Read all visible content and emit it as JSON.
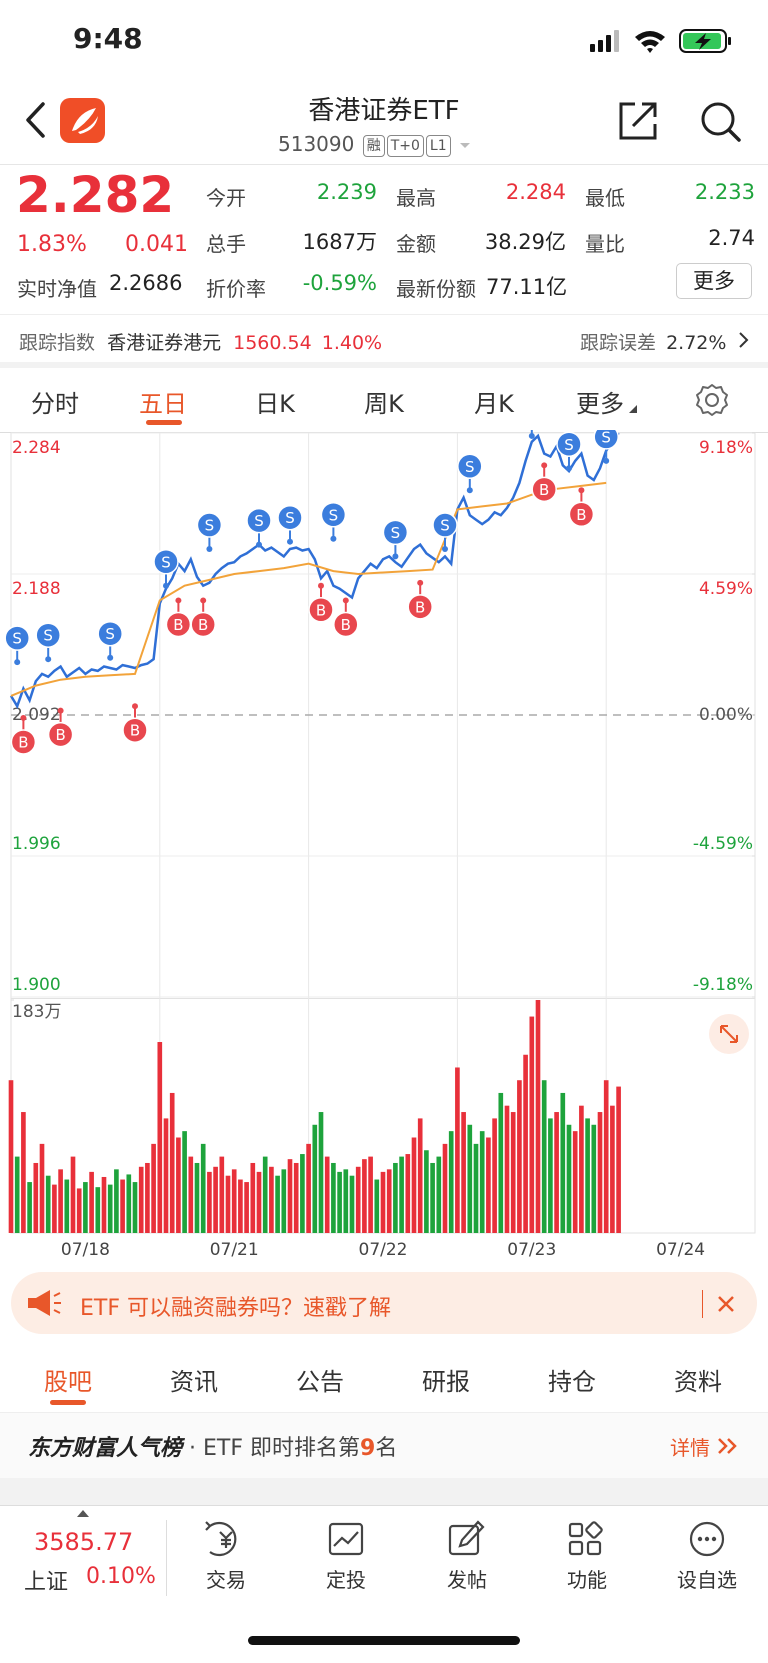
{
  "status_bar": {
    "time": "9:48"
  },
  "header": {
    "title": "香港证券ETF",
    "code": "513090",
    "tags": [
      "融",
      "T+0",
      "L1"
    ]
  },
  "quote": {
    "price": "2.282",
    "change_pct": "1.83%",
    "change": "0.041",
    "fields": [
      {
        "label": "今开",
        "value": "2.239"
      },
      {
        "label": "最高",
        "value": "2.284"
      },
      {
        "label": "最低",
        "value": "2.233"
      },
      {
        "label": "总手",
        "value": "1687万"
      },
      {
        "label": "金额",
        "value": "38.29亿"
      },
      {
        "label": "量比",
        "value": "2.74"
      },
      {
        "label": "实时净值",
        "value": "2.2686"
      },
      {
        "label": "折价率",
        "value": "-0.59%"
      },
      {
        "label": "最新份额",
        "value": "77.11亿"
      }
    ],
    "more": "更多"
  },
  "tracking": {
    "label": "跟踪指数",
    "index": "香港证券港元",
    "value": "1560.54",
    "pct": "1.40%",
    "error_label": "跟踪误差",
    "error": "2.72%"
  },
  "chart_tabs": [
    "分时",
    "五日",
    "日K",
    "周K",
    "月K",
    "更多"
  ],
  "chart_data": {
    "type": "line",
    "ylim": [
      1.9,
      2.284
    ],
    "yticks": [
      2.284,
      2.188,
      2.092,
      1.996,
      {
        "value": 1.9,
        "label": "1.900"
      }
    ],
    "y2lim": [
      -9.18,
      9.18
    ],
    "y2ticks": [
      {
        "value": 9.18,
        "label": "9.18%"
      },
      {
        "value": 4.59,
        "label": "4.59%"
      },
      {
        "value": 0,
        "label": "0.00%"
      },
      {
        "value": -4.59,
        "label": "-4.59%"
      },
      {
        "value": -9.18,
        "label": "-9.18%"
      }
    ],
    "xlim": [
      0,
      120
    ],
    "dates": [
      "07/18",
      "07/21",
      "07/22",
      "07/23",
      "07/24"
    ],
    "series": [
      {
        "color": "#2f6fd6",
        "x": [
          0,
          1,
          2,
          3,
          4,
          5,
          6,
          7,
          8,
          9,
          10,
          11,
          12,
          13,
          14,
          15,
          16,
          17,
          18,
          19,
          20,
          21,
          22,
          23,
          24,
          25,
          26,
          27,
          28,
          29,
          30,
          31,
          32,
          33,
          34,
          35,
          36,
          37,
          38,
          39,
          40,
          41,
          42,
          43,
          44,
          45,
          46,
          47,
          48,
          49,
          50,
          51,
          52,
          53,
          54,
          55,
          56,
          57,
          58,
          59,
          60,
          61,
          62,
          63,
          64,
          65,
          66,
          67,
          68,
          69,
          70,
          71,
          72,
          73,
          74,
          75,
          76,
          77,
          78,
          79,
          80,
          81,
          82,
          83,
          84,
          85,
          86,
          87,
          88,
          89,
          90,
          91,
          92,
          93,
          94,
          95,
          96,
          97,
          98
        ],
        "values": [
          2.105,
          2.098,
          2.11,
          2.102,
          2.115,
          2.12,
          2.118,
          2.122,
          2.125,
          2.118,
          2.121,
          2.124,
          2.12,
          2.123,
          2.122,
          2.125,
          2.124,
          2.123,
          2.126,
          2.125,
          2.124,
          2.126,
          2.127,
          2.13,
          2.168,
          2.178,
          2.185,
          2.195,
          2.19,
          2.198,
          2.186,
          2.18,
          2.182,
          2.188,
          2.192,
          2.195,
          2.196,
          2.2,
          2.202,
          2.205,
          2.208,
          2.204,
          2.206,
          2.203,
          2.2,
          2.205,
          2.206,
          2.204,
          2.205,
          2.198,
          2.185,
          2.19,
          2.18,
          2.178,
          2.175,
          2.172,
          2.185,
          2.19,
          2.195,
          2.192,
          2.198,
          2.2,
          2.196,
          2.193,
          2.199,
          2.205,
          2.208,
          2.202,
          2.199,
          2.196,
          2.2,
          2.195,
          2.232,
          2.24,
          2.228,
          2.225,
          2.222,
          2.225,
          2.23,
          2.228,
          2.233,
          2.24,
          2.25,
          2.265,
          2.278,
          2.282,
          2.27,
          2.268,
          2.275,
          2.262,
          2.258,
          2.265,
          2.27,
          2.255,
          2.252,
          2.26,
          2.272,
          2.278,
          2.284
        ]
      },
      {
        "color": "#f2a33a",
        "x": [
          0,
          4,
          8,
          12,
          16,
          20,
          24,
          28,
          32,
          36,
          40,
          44,
          48,
          52,
          56,
          60,
          64,
          68,
          72,
          76,
          80,
          84,
          88,
          92,
          96
        ],
        "values": [
          2.105,
          2.112,
          2.116,
          2.118,
          2.119,
          2.12,
          2.17,
          2.18,
          2.184,
          2.188,
          2.19,
          2.192,
          2.195,
          2.19,
          2.188,
          2.189,
          2.19,
          2.191,
          2.232,
          2.234,
          2.236,
          2.242,
          2.246,
          2.248,
          2.25
        ]
      }
    ],
    "markers": [
      {
        "label": "S",
        "x": 1,
        "value": 2.128
      },
      {
        "label": "B",
        "x": 2,
        "value": 2.09
      },
      {
        "label": "S",
        "x": 6,
        "value": 2.13
      },
      {
        "label": "B",
        "x": 8,
        "value": 2.095
      },
      {
        "label": "S",
        "x": 16,
        "value": 2.131
      },
      {
        "label": "B",
        "x": 20,
        "value": 2.098
      },
      {
        "label": "S",
        "x": 25,
        "value": 2.18
      },
      {
        "label": "B",
        "x": 27,
        "value": 2.17
      },
      {
        "label": "S",
        "x": 32,
        "value": 2.205
      },
      {
        "label": "B",
        "x": 31,
        "value": 2.17
      },
      {
        "label": "S",
        "x": 40,
        "value": 2.208
      },
      {
        "label": "S",
        "x": 45,
        "value": 2.21
      },
      {
        "label": "B",
        "x": 50,
        "value": 2.18
      },
      {
        "label": "S",
        "x": 52,
        "value": 2.212
      },
      {
        "label": "B",
        "x": 54,
        "value": 2.17
      },
      {
        "label": "S",
        "x": 62,
        "value": 2.2
      },
      {
        "label": "B",
        "x": 66,
        "value": 2.182
      },
      {
        "label": "S",
        "x": 70,
        "value": 2.205
      },
      {
        "label": "S",
        "x": 74,
        "value": 2.245
      },
      {
        "label": "S",
        "x": 84,
        "value": 2.282
      },
      {
        "label": "B",
        "x": 86,
        "value": 2.262
      },
      {
        "label": "S",
        "x": 90,
        "value": 2.26
      },
      {
        "label": "B",
        "x": 92,
        "value": 2.245
      },
      {
        "label": "S",
        "x": 96,
        "value": 2.265
      }
    ],
    "volume": {
      "ylim": [
        0,
        183
      ],
      "yticks": [
        {
          "value": 183,
          "label": "183万"
        }
      ],
      "values": [
        120,
        60,
        95,
        40,
        55,
        70,
        45,
        38,
        50,
        42,
        60,
        35,
        40,
        48,
        36,
        44,
        38,
        50,
        42,
        46,
        40,
        52,
        55,
        70,
        150,
        90,
        110,
        75,
        80,
        60,
        55,
        70,
        48,
        52,
        60,
        45,
        50,
        42,
        40,
        55,
        48,
        60,
        52,
        45,
        50,
        58,
        55,
        62,
        70,
        85,
        95,
        60,
        55,
        48,
        50,
        45,
        52,
        58,
        60,
        42,
        48,
        50,
        55,
        60,
        62,
        75,
        90,
        65,
        55,
        60,
        70,
        80,
        130,
        95,
        85,
        70,
        80,
        75,
        90,
        110,
        100,
        95,
        120,
        140,
        170,
        183,
        120,
        90,
        95,
        110,
        85,
        80,
        100,
        90,
        85,
        95,
        120,
        100,
        115
      ]
    }
  },
  "banner": {
    "text": "ETF 可以融资融券吗？速戳了解"
  },
  "tabs": [
    "股吧",
    "资讯",
    "公告",
    "研报",
    "持仓",
    "资料"
  ],
  "ranking": {
    "title": "东方财富人气榜",
    "text_prefix": "· ETF 即时排名第",
    "rank": "9",
    "text_suffix": "名",
    "detail": "详情"
  },
  "bottom": {
    "index_value": "3585.77",
    "index_name": "上证",
    "index_pct": "0.10%",
    "items": [
      "交易",
      "定投",
      "发帖",
      "功能",
      "设自选"
    ]
  }
}
